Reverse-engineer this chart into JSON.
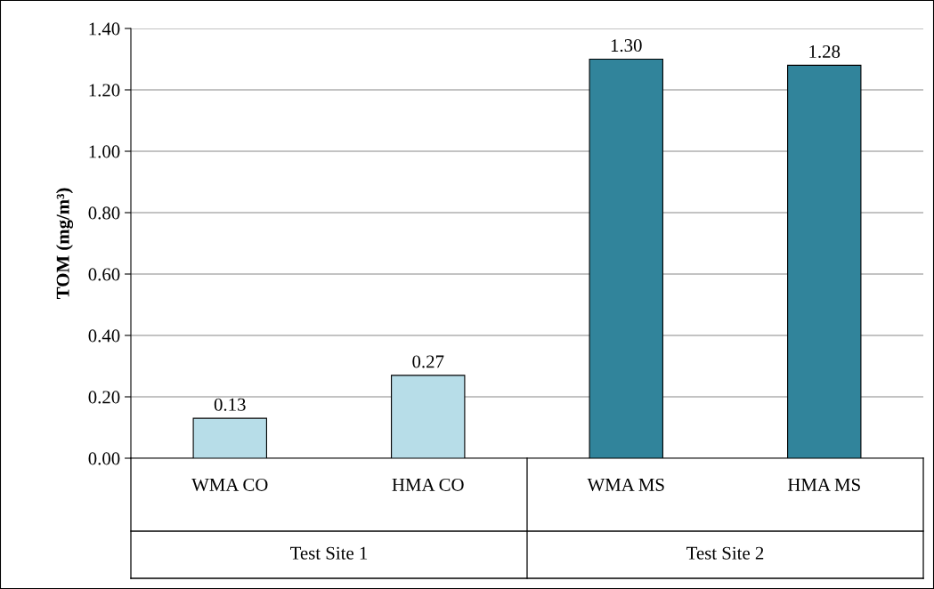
{
  "chart_data": {
    "type": "bar",
    "ylabel": "TOM (mg/m³)",
    "categories": [
      "WMA CO",
      "HMA CO",
      "WMA MS",
      "HMA MS"
    ],
    "values": [
      0.13,
      0.27,
      1.3,
      1.28
    ],
    "colors": [
      "#b7dde8",
      "#b7dde8",
      "#31849b",
      "#31849b"
    ],
    "value_labels": [
      "0.13",
      "0.27",
      "1.30",
      "1.28"
    ],
    "ylim": [
      0,
      1.4
    ],
    "yticks": [
      {
        "value": 0,
        "label": "0.00"
      },
      {
        "value": 0.2,
        "label": "0.20"
      },
      {
        "value": 0.4,
        "label": "0.40"
      },
      {
        "value": 0.6,
        "label": "0.60"
      },
      {
        "value": 0.8,
        "label": "0.80"
      },
      {
        "value": 1.0,
        "label": "1.00"
      },
      {
        "value": 1.2,
        "label": "1.20"
      },
      {
        "value": 1.4,
        "label": "1.40"
      }
    ],
    "grid": "y",
    "annotations": [
      "Test Site 1",
      "Test Site 2"
    ]
  }
}
